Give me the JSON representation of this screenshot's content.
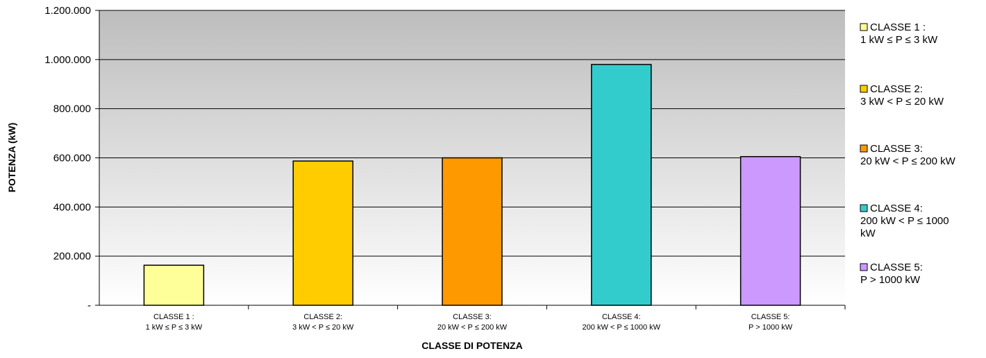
{
  "chart_data": {
    "type": "bar",
    "title": "",
    "xlabel": "CLASSE DI POTENZA",
    "ylabel": "POTENZA (kW)",
    "ylim": [
      0,
      1200000
    ],
    "yticks": [
      {
        "value": 0,
        "label": "-"
      },
      {
        "value": 200000,
        "label": "200.000"
      },
      {
        "value": 400000,
        "label": "400.000"
      },
      {
        "value": 600000,
        "label": "600.000"
      },
      {
        "value": 800000,
        "label": "800.000"
      },
      {
        "value": 1000000,
        "label": "1.000.000"
      },
      {
        "value": 1200000,
        "label": "1.200.000"
      }
    ],
    "grid": true,
    "legend_position": "right",
    "categories": [
      {
        "lines": [
          "CLASSE 1 :",
          "1 kW ≤ P ≤ 3 kW"
        ]
      },
      {
        "lines": [
          "CLASSE 2:",
          "3 kW < P ≤ 20 kW"
        ]
      },
      {
        "lines": [
          "CLASSE 3:",
          "20 kW < P ≤ 200 kW"
        ]
      },
      {
        "lines": [
          "CLASSE 4:",
          "200 kW < P ≤ 1000 kW"
        ]
      },
      {
        "lines": [
          "CLASSE 5:",
          "P > 1000 kW"
        ]
      }
    ],
    "values": [
      163000,
      587000,
      600000,
      980000,
      605000
    ],
    "colors": [
      "#FFFF99",
      "#FFCC00",
      "#FF9900",
      "#33CCCC",
      "#CC99FF"
    ],
    "legend": [
      {
        "lines": [
          "CLASSE 1 :",
          "1 kW ≤ P ≤ 3 kW"
        ],
        "color": "#FFFF99"
      },
      {
        "lines": [
          "CLASSE 2:",
          "3 kW < P ≤ 20 kW"
        ],
        "color": "#FFCC00"
      },
      {
        "lines": [
          "CLASSE 3:",
          "20 kW < P ≤ 200 kW"
        ],
        "color": "#FF9900"
      },
      {
        "lines": [
          "CLASSE 4:",
          "200 kW < P ≤ 1000",
          "kW"
        ],
        "color": "#33CCCC"
      },
      {
        "lines": [
          "CLASSE 5:",
          "P > 1000 kW"
        ],
        "color": "#CC99FF"
      }
    ],
    "plot_background": {
      "top": "#BDBDBD",
      "bottom": "#FFFFFF"
    }
  }
}
